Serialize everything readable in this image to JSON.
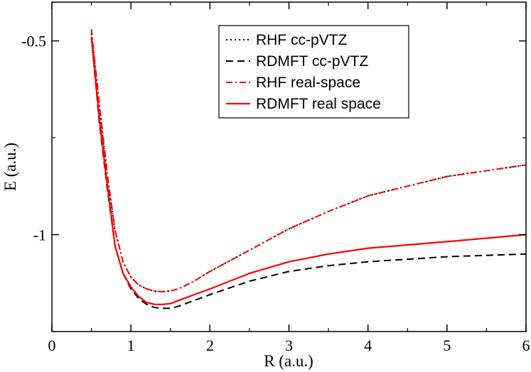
{
  "chart_data": {
    "type": "line",
    "xlabel": "R (a.u.)",
    "ylabel": "E (a.u.)",
    "xlim": [
      0,
      6
    ],
    "ylim": [
      -1.25,
      -0.4
    ],
    "xticks": [
      0,
      1,
      2,
      3,
      4,
      5,
      6
    ],
    "xtick_labels": [
      "0",
      "1",
      "2",
      "3",
      "4",
      "5",
      "6"
    ],
    "yticks": [
      -0.5,
      -1
    ],
    "ytick_labels": [
      "-0.5",
      "-1"
    ],
    "legend_position": "top-center",
    "series": [
      {
        "name": "RHF cc-pVTZ",
        "style": "dotted",
        "color": "#000000",
        "x": [
          0.5,
          0.6,
          0.7,
          0.8,
          0.9,
          1.0,
          1.1,
          1.2,
          1.3,
          1.4,
          1.5,
          1.6,
          1.8,
          2.0,
          2.5,
          3.0,
          3.5,
          4.0,
          5.0,
          6.0
        ],
        "y": [
          -0.48,
          -0.67,
          -0.85,
          -0.99,
          -1.07,
          -1.11,
          -1.13,
          -1.14,
          -1.146,
          -1.147,
          -1.145,
          -1.14,
          -1.12,
          -1.095,
          -1.04,
          -0.985,
          -0.94,
          -0.9,
          -0.85,
          -0.82
        ]
      },
      {
        "name": "RDMFT cc-pVTZ",
        "style": "dashed",
        "color": "#000000",
        "x": [
          0.5,
          0.6,
          0.7,
          0.8,
          0.9,
          1.0,
          1.1,
          1.2,
          1.3,
          1.4,
          1.5,
          1.6,
          1.8,
          2.0,
          2.5,
          3.0,
          3.5,
          4.0,
          5.0,
          6.0
        ],
        "y": [
          -0.49,
          -0.71,
          -0.88,
          -1.03,
          -1.1,
          -1.14,
          -1.165,
          -1.18,
          -1.188,
          -1.19,
          -1.19,
          -1.185,
          -1.17,
          -1.155,
          -1.12,
          -1.095,
          -1.08,
          -1.07,
          -1.057,
          -1.05
        ]
      },
      {
        "name": "RHF real-space",
        "style": "dash-dot",
        "color": "#ff0000",
        "x": [
          0.5,
          0.6,
          0.7,
          0.8,
          0.9,
          1.0,
          1.1,
          1.2,
          1.3,
          1.4,
          1.5,
          1.6,
          1.8,
          2.0,
          2.5,
          3.0,
          3.5,
          4.0,
          5.0,
          6.0
        ],
        "y": [
          -0.47,
          -0.66,
          -0.84,
          -0.99,
          -1.07,
          -1.11,
          -1.13,
          -1.14,
          -1.146,
          -1.147,
          -1.145,
          -1.14,
          -1.12,
          -1.095,
          -1.04,
          -0.985,
          -0.94,
          -0.9,
          -0.85,
          -0.82
        ]
      },
      {
        "name": "RDMFT real space",
        "style": "solid",
        "color": "#ff0000",
        "x": [
          0.5,
          0.6,
          0.7,
          0.8,
          0.9,
          1.0,
          1.1,
          1.2,
          1.3,
          1.4,
          1.5,
          1.6,
          1.8,
          2.0,
          2.5,
          3.0,
          3.5,
          4.0,
          5.0,
          6.0
        ],
        "y": [
          -0.49,
          -0.7,
          -0.87,
          -1.03,
          -1.1,
          -1.135,
          -1.16,
          -1.175,
          -1.18,
          -1.18,
          -1.178,
          -1.17,
          -1.155,
          -1.14,
          -1.1,
          -1.07,
          -1.05,
          -1.035,
          -1.018,
          -1.0
        ]
      }
    ]
  }
}
